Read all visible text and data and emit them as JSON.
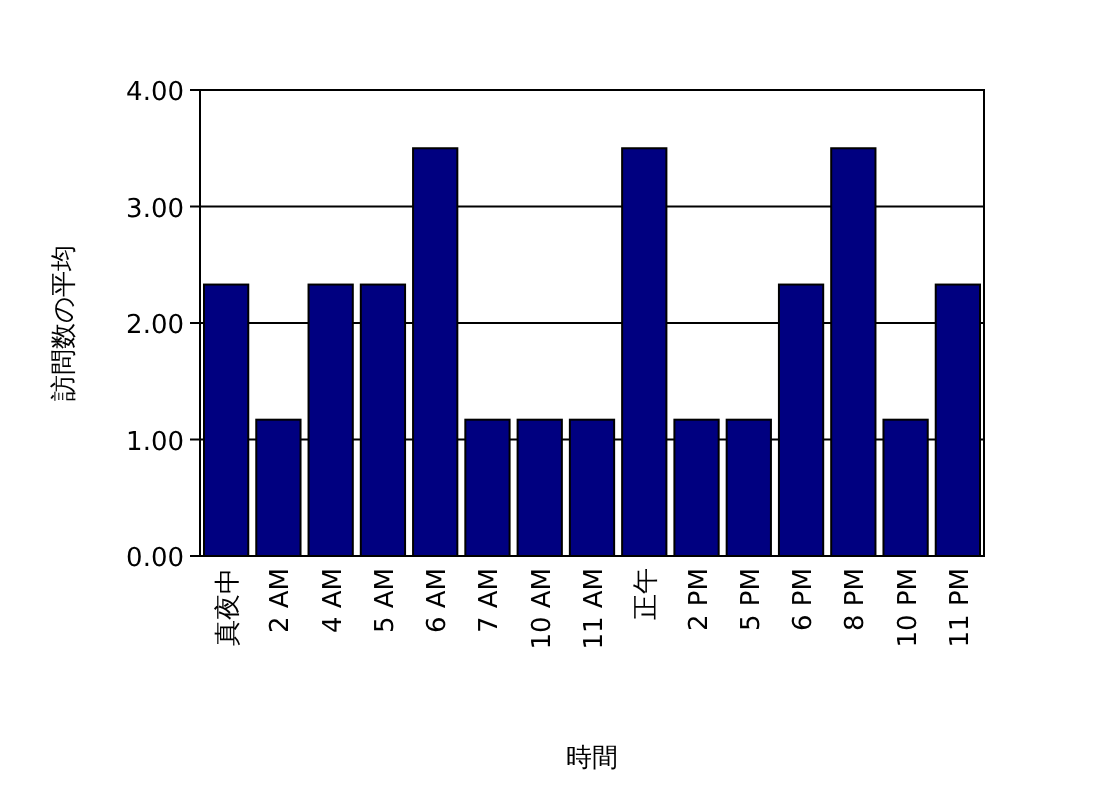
{
  "chart_data": {
    "type": "bar",
    "xlabel": "時間",
    "ylabel": "訪問数の平均",
    "categories": [
      "真夜中",
      "2 AM",
      "4 AM",
      "5 AM",
      "6 AM",
      "7 AM",
      "10 AM",
      "11 AM",
      "正午",
      "2 PM",
      "5 PM",
      "6 PM",
      "8 PM",
      "10 PM",
      "11 PM"
    ],
    "values": [
      2.33,
      1.17,
      2.33,
      2.33,
      3.5,
      1.17,
      1.17,
      1.17,
      3.5,
      1.17,
      1.17,
      2.33,
      3.5,
      1.17,
      2.33
    ],
    "color": "#000080",
    "ylim": [
      0,
      4
    ],
    "yticks": [
      {
        "value": 0,
        "label": "0.00"
      },
      {
        "value": 1,
        "label": "1.00"
      },
      {
        "value": 2,
        "label": "2.00"
      },
      {
        "value": 3,
        "label": "3.00"
      },
      {
        "value": 4,
        "label": "4.00"
      }
    ],
    "grid": "y"
  }
}
